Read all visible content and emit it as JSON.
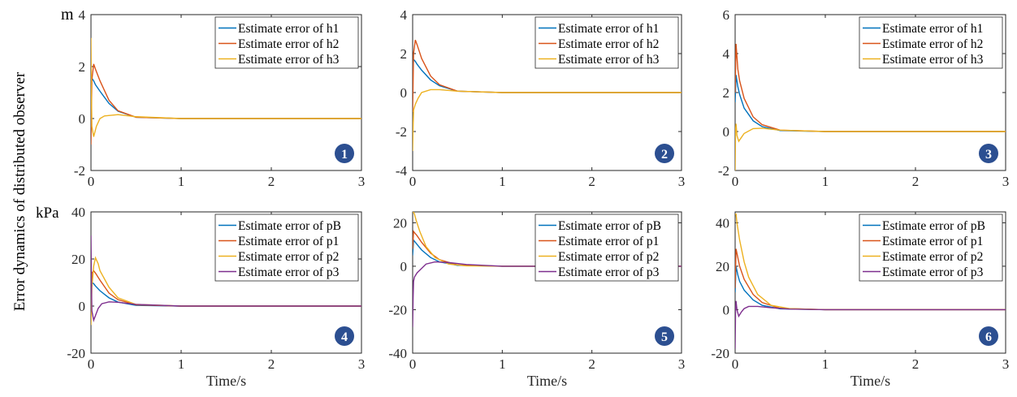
{
  "figure": {
    "ylabel": "Error dynamics of distributed observer",
    "unit_top": "m",
    "unit_bottom": "kPa",
    "xlabel": "Time/s",
    "badge_color": "#2c4f91"
  },
  "chart_data": [
    {
      "type": "line",
      "panel": "1",
      "xlim": [
        0,
        3
      ],
      "ylim": [
        -2,
        4
      ],
      "xticks": [
        0,
        1,
        2,
        3
      ],
      "yticks": [
        -2,
        0,
        2,
        4
      ],
      "legend": "top-right",
      "grid": false,
      "series": [
        {
          "name": "Estimate error of h1",
          "color": "#0072bd",
          "x": [
            0,
            0.01,
            0.03,
            0.05,
            0.1,
            0.2,
            0.3,
            0.5,
            1,
            2,
            3
          ],
          "y": [
            1.2,
            1.55,
            1.45,
            1.3,
            1.05,
            0.58,
            0.28,
            0.05,
            0,
            0,
            0
          ]
        },
        {
          "name": "Estimate error of h2",
          "color": "#d95319",
          "x": [
            0,
            0.01,
            0.03,
            0.05,
            0.1,
            0.2,
            0.3,
            0.5,
            1,
            2,
            3
          ],
          "y": [
            -1.0,
            1.5,
            2.1,
            1.9,
            1.45,
            0.7,
            0.3,
            0.05,
            0,
            0,
            0
          ]
        },
        {
          "name": "Estimate error of h3",
          "color": "#edb120",
          "x": [
            0,
            0.005,
            0.01,
            0.03,
            0.06,
            0.1,
            0.15,
            0.3,
            0.5,
            1,
            2,
            3
          ],
          "y": [
            3.1,
            1.0,
            -0.3,
            -0.7,
            -0.3,
            0.0,
            0.1,
            0.15,
            0.07,
            0,
            0,
            0
          ]
        }
      ]
    },
    {
      "type": "line",
      "panel": "2",
      "xlim": [
        0,
        3
      ],
      "ylim": [
        -4,
        4
      ],
      "xticks": [
        0,
        1,
        2,
        3
      ],
      "yticks": [
        -4,
        -2,
        0,
        2,
        4
      ],
      "legend": "top-right",
      "grid": false,
      "series": [
        {
          "name": "Estimate error of h1",
          "color": "#0072bd",
          "x": [
            0,
            0.01,
            0.03,
            0.05,
            0.1,
            0.2,
            0.3,
            0.5,
            1,
            2,
            3
          ],
          "y": [
            1.0,
            1.7,
            1.6,
            1.45,
            1.15,
            0.65,
            0.35,
            0.07,
            0,
            0,
            0
          ]
        },
        {
          "name": "Estimate error of h2",
          "color": "#d95319",
          "x": [
            0,
            0.01,
            0.03,
            0.05,
            0.1,
            0.2,
            0.3,
            0.5,
            1,
            2,
            3
          ],
          "y": [
            -1.0,
            2.0,
            2.7,
            2.45,
            1.75,
            0.85,
            0.4,
            0.07,
            0,
            0,
            0
          ]
        },
        {
          "name": "Estimate error of h3",
          "color": "#edb120",
          "x": [
            0,
            0.005,
            0.01,
            0.03,
            0.06,
            0.1,
            0.2,
            0.3,
            0.5,
            1,
            2,
            3
          ],
          "y": [
            -3.0,
            -1.8,
            -0.9,
            -0.6,
            -0.3,
            0.0,
            0.15,
            0.15,
            0.07,
            0,
            0,
            0
          ]
        }
      ]
    },
    {
      "type": "line",
      "panel": "3",
      "xlim": [
        0,
        3
      ],
      "ylim": [
        -2,
        6
      ],
      "xticks": [
        0,
        1,
        2,
        3
      ],
      "yticks": [
        -2,
        0,
        2,
        4,
        6
      ],
      "legend": "top-right",
      "grid": false,
      "series": [
        {
          "name": "Estimate error of h1",
          "color": "#0072bd",
          "x": [
            0,
            0.01,
            0.03,
            0.05,
            0.1,
            0.2,
            0.3,
            0.5,
            1,
            2,
            3
          ],
          "y": [
            1.5,
            2.9,
            2.3,
            1.9,
            1.2,
            0.55,
            0.25,
            0.05,
            0,
            0,
            0
          ]
        },
        {
          "name": "Estimate error of h2",
          "color": "#d95319",
          "x": [
            0,
            0.01,
            0.03,
            0.05,
            0.1,
            0.2,
            0.3,
            0.5,
            1,
            2,
            3
          ],
          "y": [
            2.0,
            4.5,
            3.2,
            2.6,
            1.7,
            0.75,
            0.35,
            0.07,
            0,
            0,
            0
          ]
        },
        {
          "name": "Estimate error of h3",
          "color": "#edb120",
          "x": [
            0,
            0.005,
            0.01,
            0.02,
            0.04,
            0.07,
            0.1,
            0.2,
            0.3,
            0.5,
            1,
            2,
            3
          ],
          "y": [
            -2.0,
            0.1,
            0.4,
            -0.2,
            -0.5,
            -0.3,
            -0.1,
            0.15,
            0.17,
            0.07,
            0,
            0,
            0
          ]
        }
      ]
    },
    {
      "type": "line",
      "panel": "4",
      "xlim": [
        0,
        3
      ],
      "ylim": [
        -20,
        40
      ],
      "xticks": [
        0,
        1,
        2,
        3
      ],
      "yticks": [
        -20,
        0,
        20,
        40
      ],
      "legend": "top-right",
      "grid": false,
      "series": [
        {
          "name": "Estimate error of pB",
          "color": "#0072bd",
          "x": [
            0,
            0.01,
            0.03,
            0.05,
            0.1,
            0.2,
            0.3,
            0.5,
            1,
            2,
            3
          ],
          "y": [
            5,
            10,
            9.5,
            8.5,
            6.5,
            3.5,
            1.7,
            0.3,
            0,
            0,
            0
          ]
        },
        {
          "name": "Estimate error of p1",
          "color": "#d95319",
          "x": [
            0,
            0.01,
            0.03,
            0.05,
            0.1,
            0.2,
            0.3,
            0.5,
            1,
            2,
            3
          ],
          "y": [
            2,
            14,
            15,
            14,
            11,
            5.5,
            2.7,
            0.5,
            0,
            0,
            0
          ]
        },
        {
          "name": "Estimate error of p2",
          "color": "#edb120",
          "x": [
            0,
            0.01,
            0.03,
            0.05,
            0.08,
            0.1,
            0.2,
            0.3,
            0.5,
            1,
            2,
            3
          ],
          "y": [
            -8,
            8,
            17,
            20.5,
            18,
            15,
            8,
            3.5,
            0.7,
            0,
            0,
            0
          ]
        },
        {
          "name": "Estimate error of p3",
          "color": "#7e2f8e",
          "x": [
            0,
            0.005,
            0.01,
            0.03,
            0.05,
            0.08,
            0.12,
            0.2,
            0.3,
            0.5,
            1,
            2,
            3
          ],
          "y": [
            30,
            10,
            -2,
            -6,
            -4,
            -1,
            1,
            1.8,
            1.6,
            0.7,
            0,
            0,
            0
          ]
        }
      ]
    },
    {
      "type": "line",
      "panel": "5",
      "xlim": [
        0,
        3
      ],
      "ylim": [
        -40,
        25
      ],
      "xticks": [
        0,
        1,
        2,
        3
      ],
      "yticks": [
        -40,
        -20,
        0,
        20
      ],
      "legend": "top-right",
      "grid": false,
      "series": [
        {
          "name": "Estimate error of pB",
          "color": "#0072bd",
          "x": [
            0,
            0.01,
            0.03,
            0.05,
            0.1,
            0.2,
            0.3,
            0.5,
            1,
            2,
            3
          ],
          "y": [
            5,
            12,
            11,
            10,
            7.5,
            4,
            2,
            0.4,
            0,
            0,
            0
          ]
        },
        {
          "name": "Estimate error of p1",
          "color": "#d95319",
          "x": [
            0,
            0.01,
            0.03,
            0.05,
            0.1,
            0.2,
            0.3,
            0.5,
            1,
            2,
            3
          ],
          "y": [
            8,
            16,
            15,
            14,
            11,
            6,
            3,
            0.6,
            0,
            0,
            0
          ]
        },
        {
          "name": "Estimate error of p2",
          "color": "#edb120",
          "x": [
            0,
            0.01,
            0.02,
            0.04,
            0.08,
            0.15,
            0.25,
            0.4,
            0.6,
            1,
            2,
            3
          ],
          "y": [
            25,
            25,
            24,
            21,
            16,
            9,
            4,
            1,
            0.2,
            0,
            0,
            0
          ]
        },
        {
          "name": "Estimate error of p3",
          "color": "#7e2f8e",
          "x": [
            0,
            0.005,
            0.01,
            0.02,
            0.05,
            0.1,
            0.15,
            0.25,
            0.4,
            0.6,
            1,
            2,
            3
          ],
          "y": [
            -28,
            -15,
            -7,
            -5,
            -3,
            -1,
            1,
            2,
            1.7,
            0.8,
            0,
            0,
            0
          ]
        }
      ]
    },
    {
      "type": "line",
      "panel": "6",
      "xlim": [
        0,
        3
      ],
      "ylim": [
        -20,
        45
      ],
      "xticks": [
        0,
        1,
        2,
        3
      ],
      "yticks": [
        -20,
        0,
        20,
        40
      ],
      "legend": "top-right",
      "grid": false,
      "series": [
        {
          "name": "Estimate error of pB",
          "color": "#0072bd",
          "x": [
            0,
            0.01,
            0.03,
            0.05,
            0.1,
            0.2,
            0.3,
            0.5,
            1,
            2,
            3
          ],
          "y": [
            8,
            20,
            16,
            13,
            9,
            4.5,
            2,
            0.4,
            0,
            0,
            0
          ]
        },
        {
          "name": "Estimate error of p1",
          "color": "#d95319",
          "x": [
            0,
            0.01,
            0.03,
            0.05,
            0.1,
            0.2,
            0.3,
            0.5,
            1,
            2,
            3
          ],
          "y": [
            10,
            28,
            24,
            20,
            14,
            7,
            3.3,
            0.6,
            0,
            0,
            0
          ]
        },
        {
          "name": "Estimate error of p2",
          "color": "#edb120",
          "x": [
            0,
            0.01,
            0.02,
            0.05,
            0.1,
            0.15,
            0.25,
            0.4,
            0.6,
            1,
            2,
            3
          ],
          "y": [
            44,
            44,
            40,
            32,
            22,
            15,
            7,
            2,
            0.5,
            0,
            0,
            0
          ]
        },
        {
          "name": "Estimate error of p3",
          "color": "#7e2f8e",
          "x": [
            0,
            0.005,
            0.01,
            0.02,
            0.04,
            0.07,
            0.1,
            0.15,
            0.25,
            0.4,
            0.6,
            1,
            2,
            3
          ],
          "y": [
            -18,
            0,
            4,
            0,
            -3,
            -1,
            0.5,
            1.5,
            1.5,
            0.9,
            0.3,
            0,
            0,
            0
          ]
        }
      ]
    }
  ]
}
